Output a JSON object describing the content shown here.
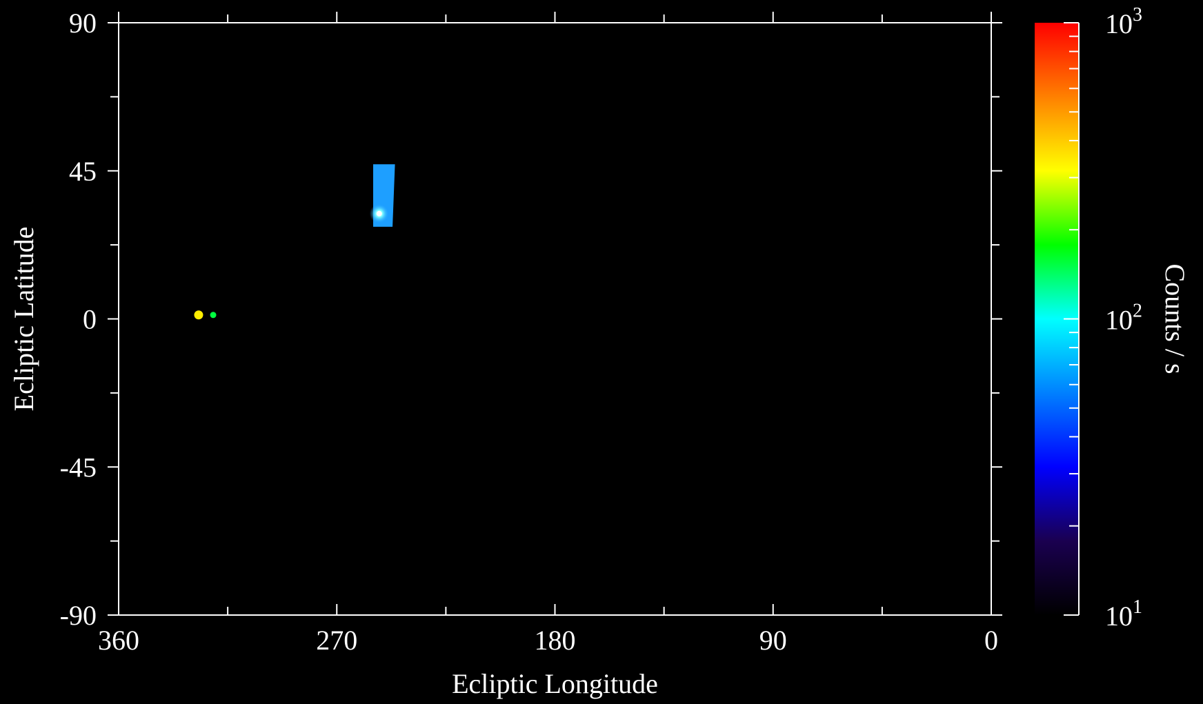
{
  "chart_data": {
    "type": "heatmap",
    "xlabel": "Ecliptic Longitude",
    "ylabel": "Ecliptic Latitude",
    "xlim": [
      360,
      0
    ],
    "ylim": [
      -90,
      90
    ],
    "x_major_ticks": [
      360,
      270,
      180,
      90,
      0
    ],
    "x_major_tick_labels": [
      "360",
      "270",
      "180",
      "90",
      "0"
    ],
    "x_minor_ticks": [
      315,
      225,
      135,
      45
    ],
    "y_major_ticks": [
      90,
      45,
      0,
      -45,
      -90
    ],
    "y_major_tick_labels": [
      "90",
      "45",
      "0",
      "-45",
      "-90"
    ],
    "y_minor_ticks": [
      67.5,
      22.5,
      -22.5,
      -67.5
    ],
    "colorbar": {
      "label": "Counts / s",
      "scale": "log",
      "range": [
        10,
        1000
      ],
      "tick_labels": [
        {
          "base": "10",
          "exp": "3",
          "value": 1000
        },
        {
          "base": "10",
          "exp": "2",
          "value": 100
        },
        {
          "base": "10",
          "exp": "1",
          "value": 10
        }
      ],
      "minor_ticks": [
        20,
        30,
        40,
        50,
        60,
        70,
        80,
        90,
        200,
        300,
        400,
        500,
        600,
        700,
        800,
        900
      ],
      "colors": [
        "#000000",
        "#1a0050",
        "#0000ff",
        "#0080ff",
        "#00ffff",
        "#00ff00",
        "#ffff00",
        "#ff8000",
        "#ff0000"
      ]
    },
    "regions": [
      {
        "lon_top": [
          255,
          246
        ],
        "lon_bottom": [
          255,
          247
        ],
        "lat": [
          28,
          47
        ],
        "value": 35,
        "color": "#1e9fff"
      }
    ],
    "sources": [
      {
        "lon": 327,
        "lat": 1.2,
        "value": 300,
        "color": "#ffee00"
      },
      {
        "lon": 321,
        "lat": 1.2,
        "value": 100,
        "color": "#00ff40"
      },
      {
        "lon": 252.5,
        "lat": 32,
        "value": 60,
        "color": "#ffffff"
      }
    ],
    "grid": false
  }
}
